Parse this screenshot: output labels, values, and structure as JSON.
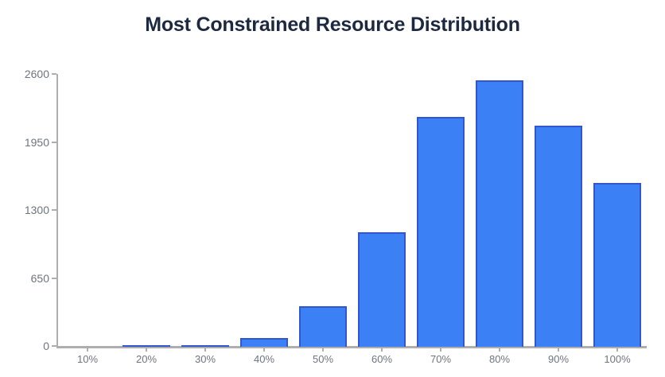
{
  "title": "Most Constrained Resource Distribution",
  "chart_data": {
    "type": "bar",
    "title": "Most Constrained Resource Distribution",
    "categories": [
      "10%",
      "20%",
      "30%",
      "40%",
      "50%",
      "60%",
      "70%",
      "80%",
      "90%",
      "100%"
    ],
    "values": [
      2,
      10,
      18,
      80,
      385,
      1095,
      2195,
      2550,
      2115,
      1565
    ],
    "xlabel": "",
    "ylabel": "",
    "ylim": [
      0,
      2600
    ],
    "yticks": [
      0,
      650,
      1300,
      1950,
      2600
    ],
    "grid": false,
    "legend": "none",
    "colors": {
      "bar_fill": "#3b80f5",
      "bar_border": "#3156cd",
      "axis": "#aeaeae",
      "tick_label": "#6e7580",
      "title": "#1c2940",
      "background": "#ffffff"
    }
  }
}
